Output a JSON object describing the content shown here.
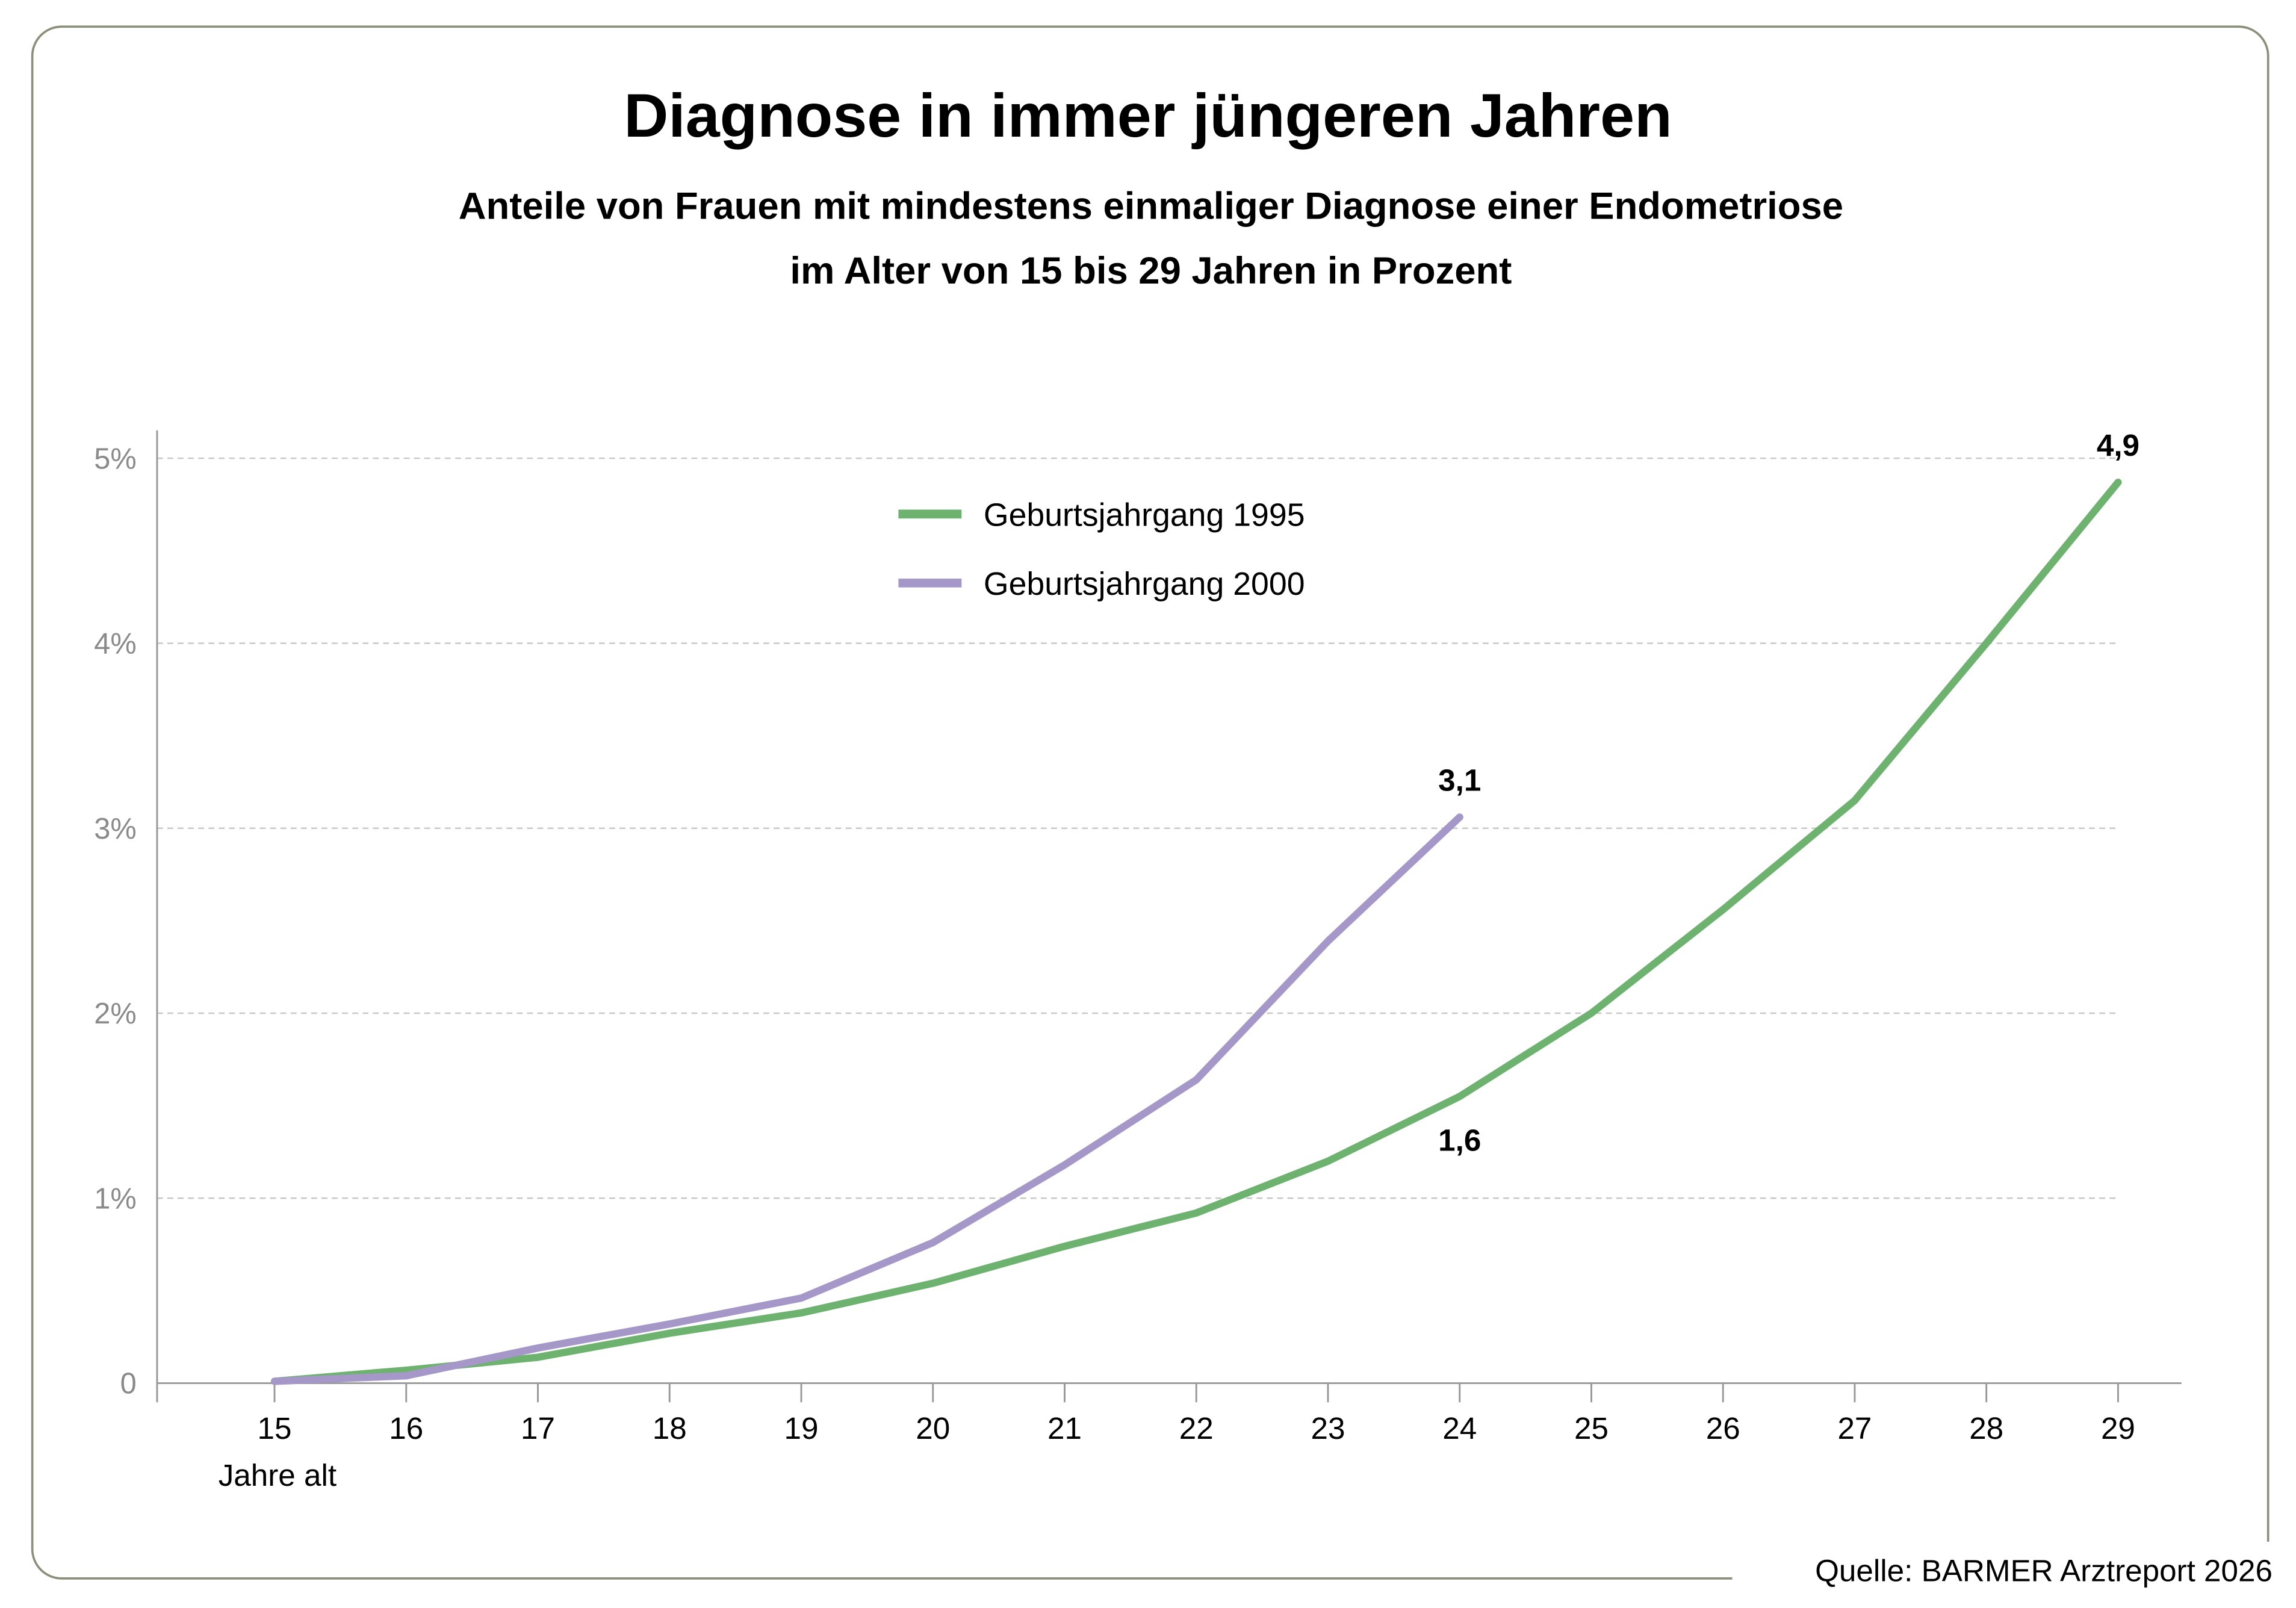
{
  "chart_data": {
    "type": "line",
    "title": "Diagnose in immer jüngeren Jahren",
    "subtitle_lines": [
      "Anteile von Frauen mit mindestens einmaliger Diagnose einer Endometriose",
      "im Alter von 15 bis 29 Jahren in Prozent"
    ],
    "xlabel": "Jahre alt",
    "x": [
      15,
      16,
      17,
      18,
      19,
      20,
      21,
      22,
      23,
      24,
      25,
      26,
      27,
      28,
      29
    ],
    "ylim": [
      0,
      5
    ],
    "yticks": [
      0,
      1,
      2,
      3,
      4,
      5
    ],
    "ytick_labels": [
      "0",
      "1%",
      "2%",
      "3%",
      "4%",
      "5%"
    ],
    "grid": "horizontal dashed",
    "legend_position": "top-center",
    "series": [
      {
        "name": "Geburtsjahrgang 1995",
        "color": "#6db36f",
        "values": [
          0.01,
          0.07,
          0.14,
          0.27,
          0.38,
          0.54,
          0.74,
          0.92,
          1.2,
          1.55,
          2.0,
          2.56,
          3.15,
          4.0,
          4.87
        ],
        "label": {
          "x": 24,
          "text": "1,6",
          "position": "below"
        },
        "end_label": {
          "x": 29,
          "text": "4,9"
        }
      },
      {
        "name": "Geburtsjahrgang 2000",
        "color": "#a597c8",
        "values": [
          0.01,
          0.04,
          0.19,
          0.32,
          0.46,
          0.76,
          1.18,
          1.64,
          2.39,
          3.06,
          null,
          null,
          null,
          null,
          null
        ],
        "end_label": {
          "x": 24,
          "text": "3,1"
        }
      }
    ],
    "source": "Quelle: BARMER Arztreport 2026"
  }
}
